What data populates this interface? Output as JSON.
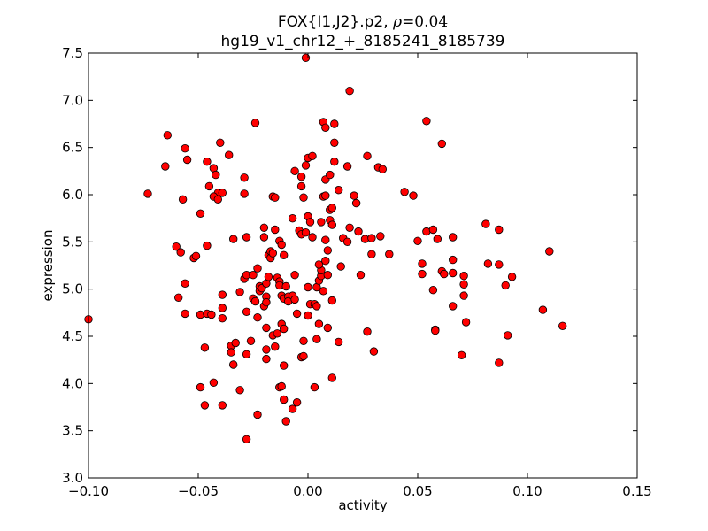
{
  "chart_data": {
    "type": "scatter",
    "title_main": "FOX{I1,J2}.p2, ",
    "title_rho_symbol": "ρ",
    "title_rho_value": "=0.04",
    "subtitle": "hg19_v1_chr12_+_8185241_8185739",
    "xlabel": "activity",
    "ylabel": "expression",
    "xlim": [
      -0.1,
      0.15
    ],
    "ylim": [
      3.0,
      7.5
    ],
    "xticks": [
      "−0.10",
      "−0.05",
      "0.00",
      "0.05",
      "0.10",
      "0.15"
    ],
    "xtick_values": [
      -0.1,
      -0.05,
      0.0,
      0.05,
      0.1,
      0.15
    ],
    "yticks": [
      "3.0",
      "3.5",
      "4.0",
      "4.5",
      "5.0",
      "5.5",
      "6.0",
      "6.5",
      "7.0",
      "7.5"
    ],
    "ytick_values": [
      3.0,
      3.5,
      4.0,
      4.5,
      5.0,
      5.5,
      6.0,
      6.5,
      7.0,
      7.5
    ],
    "grid": false,
    "marker_color": "#ff0000",
    "marker_edge": "#000000",
    "points": [
      [
        -0.1,
        4.68
      ],
      [
        -0.064,
        6.63
      ],
      [
        -0.065,
        6.3
      ],
      [
        -0.073,
        6.01
      ],
      [
        -0.056,
        6.49
      ],
      [
        -0.055,
        6.37
      ],
      [
        -0.046,
        6.35
      ],
      [
        -0.043,
        6.28
      ],
      [
        -0.042,
        6.21
      ],
      [
        -0.04,
        6.55
      ],
      [
        -0.036,
        6.42
      ],
      [
        -0.024,
        6.76
      ],
      [
        -0.045,
        6.09
      ],
      [
        -0.041,
        6.02
      ],
      [
        -0.043,
        5.98
      ],
      [
        -0.041,
        5.95
      ],
      [
        -0.039,
        6.02
      ],
      [
        -0.057,
        5.95
      ],
      [
        -0.029,
        6.18
      ],
      [
        -0.029,
        6.01
      ],
      [
        -0.049,
        5.8
      ],
      [
        -0.06,
        5.45
      ],
      [
        -0.058,
        5.39
      ],
      [
        -0.052,
        5.33
      ],
      [
        -0.051,
        5.35
      ],
      [
        -0.046,
        5.46
      ],
      [
        -0.034,
        5.53
      ],
      [
        -0.028,
        5.55
      ],
      [
        -0.056,
        5.06
      ],
      [
        -0.059,
        4.91
      ],
      [
        -0.056,
        4.74
      ],
      [
        -0.049,
        4.73
      ],
      [
        -0.046,
        4.74
      ],
      [
        -0.044,
        4.73
      ],
      [
        -0.039,
        4.69
      ],
      [
        -0.039,
        4.8
      ],
      [
        -0.039,
        4.94
      ],
      [
        -0.047,
        4.38
      ],
      [
        -0.035,
        4.4
      ],
      [
        -0.033,
        4.43
      ],
      [
        -0.035,
        4.33
      ],
      [
        -0.034,
        4.2
      ],
      [
        -0.049,
        3.96
      ],
      [
        -0.043,
        4.01
      ],
      [
        -0.047,
        3.77
      ],
      [
        -0.039,
        3.77
      ],
      [
        -0.031,
        3.93
      ],
      [
        -0.028,
        4.31
      ],
      [
        -0.026,
        4.45
      ],
      [
        -0.028,
        3.41
      ],
      [
        -0.023,
        3.67
      ],
      [
        -0.031,
        4.97
      ],
      [
        -0.029,
        5.11
      ],
      [
        -0.028,
        5.15
      ],
      [
        -0.025,
        5.15
      ],
      [
        -0.025,
        4.9
      ],
      [
        -0.024,
        4.87
      ],
      [
        -0.023,
        5.22
      ],
      [
        -0.023,
        4.7
      ],
      [
        -0.028,
        4.76
      ],
      [
        -0.022,
        5.03
      ],
      [
        -0.022,
        4.98
      ],
      [
        -0.021,
        5.01
      ],
      [
        -0.019,
        5.06
      ],
      [
        -0.019,
        4.92
      ],
      [
        -0.02,
        4.82
      ],
      [
        -0.019,
        4.86
      ],
      [
        -0.018,
        5.13
      ],
      [
        -0.018,
        5.36
      ],
      [
        -0.017,
        5.4
      ],
      [
        -0.017,
        5.33
      ],
      [
        -0.016,
        5.38
      ],
      [
        -0.02,
        5.55
      ],
      [
        -0.02,
        5.65
      ],
      [
        -0.016,
        5.98
      ],
      [
        -0.015,
        5.97
      ],
      [
        -0.015,
        5.63
      ],
      [
        -0.013,
        5.51
      ],
      [
        -0.012,
        5.47
      ],
      [
        -0.014,
        5.12
      ],
      [
        -0.013,
        5.08
      ],
      [
        -0.013,
        5.04
      ],
      [
        -0.012,
        4.93
      ],
      [
        -0.011,
        4.9
      ],
      [
        -0.016,
        4.51
      ],
      [
        -0.019,
        4.59
      ],
      [
        -0.019,
        4.36
      ],
      [
        -0.015,
        4.39
      ],
      [
        -0.014,
        4.53
      ],
      [
        -0.012,
        4.63
      ],
      [
        -0.011,
        4.58
      ],
      [
        -0.011,
        5.36
      ],
      [
        -0.01,
        5.03
      ],
      [
        -0.009,
        4.92
      ],
      [
        -0.009,
        4.87
      ],
      [
        -0.007,
        4.93
      ],
      [
        -0.006,
        4.89
      ],
      [
        -0.005,
        4.74
      ],
      [
        -0.006,
        5.15
      ],
      [
        -0.019,
        4.26
      ],
      [
        -0.011,
        4.19
      ],
      [
        -0.013,
        3.96
      ],
      [
        -0.012,
        3.97
      ],
      [
        -0.011,
        3.83
      ],
      [
        -0.01,
        3.6
      ],
      [
        -0.007,
        3.73
      ],
      [
        -0.005,
        3.8
      ],
      [
        -0.003,
        4.28
      ],
      [
        -0.002,
        4.29
      ],
      [
        -0.002,
        4.45
      ],
      [
        -0.007,
        5.75
      ],
      [
        -0.006,
        6.25
      ],
      [
        -0.003,
        6.19
      ],
      [
        -0.003,
        6.09
      ],
      [
        -0.002,
        5.97
      ],
      [
        -0.004,
        5.62
      ],
      [
        -0.003,
        5.58
      ],
      [
        -0.001,
        5.6
      ],
      [
        0.0,
        5.77
      ],
      [
        0.001,
        5.71
      ],
      [
        0.002,
        5.55
      ],
      [
        -0.001,
        6.31
      ],
      [
        0.0,
        6.39
      ],
      [
        0.002,
        6.41
      ],
      [
        0.0,
        5.02
      ],
      [
        0.001,
        4.84
      ],
      [
        0.003,
        4.84
      ],
      [
        0.004,
        4.82
      ],
      [
        0.0,
        4.72
      ],
      [
        0.004,
        4.47
      ],
      [
        0.003,
        3.96
      ],
      [
        0.004,
        5.02
      ],
      [
        0.005,
        5.09
      ],
      [
        0.006,
        5.14
      ],
      [
        0.006,
        5.2
      ],
      [
        0.005,
        5.26
      ],
      [
        0.007,
        4.98
      ],
      [
        0.005,
        4.63
      ],
      [
        0.008,
        5.3
      ],
      [
        0.009,
        5.41
      ],
      [
        0.008,
        5.52
      ],
      [
        0.006,
        5.71
      ],
      [
        0.007,
        5.98
      ],
      [
        0.008,
        5.99
      ],
      [
        0.008,
        6.16
      ],
      [
        0.01,
        6.21
      ],
      [
        0.01,
        5.73
      ],
      [
        0.01,
        5.84
      ],
      [
        0.011,
        5.86
      ],
      [
        0.011,
        5.68
      ],
      [
        0.009,
        5.15
      ],
      [
        0.009,
        4.59
      ],
      [
        0.011,
        4.88
      ],
      [
        0.011,
        4.06
      ],
      [
        0.007,
        6.77
      ],
      [
        0.008,
        6.71
      ],
      [
        0.012,
        6.75
      ],
      [
        0.012,
        6.55
      ],
      [
        0.012,
        6.35
      ],
      [
        0.014,
        6.05
      ],
      [
        0.015,
        5.24
      ],
      [
        0.014,
        4.44
      ],
      [
        0.016,
        5.54
      ],
      [
        0.018,
        5.5
      ],
      [
        0.018,
        6.3
      ],
      [
        0.019,
        7.1
      ],
      [
        0.019,
        5.65
      ],
      [
        0.021,
        5.99
      ],
      [
        0.022,
        5.91
      ],
      [
        -0.001,
        7.45
      ],
      [
        0.023,
        5.61
      ],
      [
        0.024,
        5.15
      ],
      [
        0.026,
        5.53
      ],
      [
        0.027,
        4.55
      ],
      [
        0.027,
        6.41
      ],
      [
        0.029,
        5.54
      ],
      [
        0.029,
        5.37
      ],
      [
        0.03,
        4.34
      ],
      [
        0.032,
        6.29
      ],
      [
        0.033,
        5.56
      ],
      [
        0.034,
        6.27
      ],
      [
        0.037,
        5.37
      ],
      [
        0.044,
        6.03
      ],
      [
        0.048,
        5.99
      ],
      [
        0.05,
        5.51
      ],
      [
        0.052,
        5.27
      ],
      [
        0.052,
        5.16
      ],
      [
        0.054,
        5.61
      ],
      [
        0.054,
        6.78
      ],
      [
        0.057,
        5.63
      ],
      [
        0.059,
        5.53
      ],
      [
        0.057,
        4.99
      ],
      [
        0.058,
        4.57
      ],
      [
        0.058,
        4.56
      ],
      [
        0.061,
        6.54
      ],
      [
        0.061,
        5.19
      ],
      [
        0.062,
        5.16
      ],
      [
        0.066,
        5.55
      ],
      [
        0.066,
        5.31
      ],
      [
        0.066,
        5.17
      ],
      [
        0.066,
        4.82
      ],
      [
        0.07,
        4.3
      ],
      [
        0.071,
        5.14
      ],
      [
        0.071,
        5.05
      ],
      [
        0.071,
        4.93
      ],
      [
        0.072,
        4.65
      ],
      [
        0.081,
        5.69
      ],
      [
        0.082,
        5.27
      ],
      [
        0.087,
        5.26
      ],
      [
        0.087,
        5.63
      ],
      [
        0.087,
        4.22
      ],
      [
        0.09,
        5.04
      ],
      [
        0.091,
        4.51
      ],
      [
        0.093,
        5.13
      ],
      [
        0.107,
        4.78
      ],
      [
        0.11,
        5.4
      ],
      [
        0.116,
        4.61
      ]
    ]
  }
}
